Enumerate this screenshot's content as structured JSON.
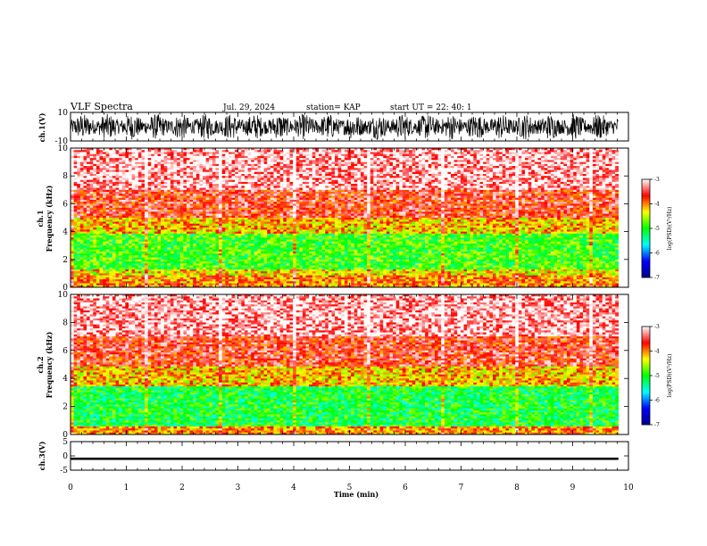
{
  "header": {
    "title": "VLF Spectra",
    "date": "Jul. 29, 2024",
    "station": "station= KAP",
    "start": "start UT = 22: 40: 1"
  },
  "chart_data": [
    {
      "type": "line",
      "name": "ch1-waveform",
      "ylabel": "ch.1(V)",
      "ylim": [
        -10,
        10
      ],
      "ytick_labels": [
        "10",
        "-10"
      ],
      "xlim": [
        0,
        10
      ],
      "x_end": 9.82,
      "description_values": "dense noise waveform roughly spanning -9 to +9 V"
    },
    {
      "type": "heatmap",
      "name": "ch1-spectrogram",
      "ylabel": "ch.1\nFrequency (kHz)",
      "ylabel_line1": "ch.1",
      "ylabel_line2": "Frequency (kHz)",
      "ylim": [
        0,
        10
      ],
      "ytick_labels": [
        "0",
        "2",
        "4",
        "6",
        "8",
        "10"
      ],
      "xlim": [
        0,
        10
      ],
      "x_end": 9.82,
      "bands_kHz": [
        {
          "from": 0.0,
          "to": 0.8,
          "level": -4.0
        },
        {
          "from": 0.8,
          "to": 1.3,
          "level": -4.3
        },
        {
          "from": 1.3,
          "to": 3.8,
          "level": -4.9
        },
        {
          "from": 3.8,
          "to": 5.0,
          "level": -4.2
        },
        {
          "from": 5.0,
          "to": 7.0,
          "level": -3.6
        },
        {
          "from": 7.0,
          "to": 10.0,
          "level": -3.2
        }
      ],
      "colorbar": {
        "label": "log(PSD)(V²/Hz)",
        "range": [
          -7,
          -3
        ],
        "tick_labels": [
          "-3",
          "-4",
          "-5",
          "-6",
          "-7"
        ]
      }
    },
    {
      "type": "heatmap",
      "name": "ch2-spectrogram",
      "ylabel_line1": "ch.2",
      "ylabel_line2": "Frequency (kHz)",
      "ylim": [
        0,
        10
      ],
      "ytick_labels": [
        "0",
        "2",
        "4",
        "6",
        "8",
        "10"
      ],
      "xlim": [
        0,
        10
      ],
      "x_end": 9.82,
      "bands_kHz": [
        {
          "from": 0.0,
          "to": 0.6,
          "level": -4.0
        },
        {
          "from": 0.6,
          "to": 3.4,
          "level": -5.1
        },
        {
          "from": 3.4,
          "to": 4.8,
          "level": -4.2
        },
        {
          "from": 4.8,
          "to": 7.0,
          "level": -3.6
        },
        {
          "from": 7.0,
          "to": 10.0,
          "level": -3.2
        }
      ],
      "colorbar": {
        "label": "log(PSD)(V²/Hz)",
        "range": [
          -7,
          -3
        ],
        "tick_labels": [
          "-3",
          "-4",
          "-5",
          "-6",
          "-7"
        ]
      }
    },
    {
      "type": "line",
      "name": "ch3-waveform",
      "ylabel": "ch.3(V)",
      "ylim": [
        -5,
        5
      ],
      "ytick_labels": [
        "5",
        "0",
        "-5"
      ],
      "xlim": [
        0,
        10
      ],
      "x_end": 9.82,
      "description_values": "thick band near -1 V, about ±0.4 V"
    }
  ],
  "x_axis": {
    "label": "Time (min)",
    "tick_labels": [
      "0",
      "1",
      "2",
      "3",
      "4",
      "5",
      "6",
      "7",
      "8",
      "9",
      "10"
    ]
  },
  "colors": {
    "spectrum": [
      "#00008f",
      "#0000ff",
      "#00ffff",
      "#00ff00",
      "#ffff00",
      "#ff0000",
      "#ffffff"
    ]
  }
}
